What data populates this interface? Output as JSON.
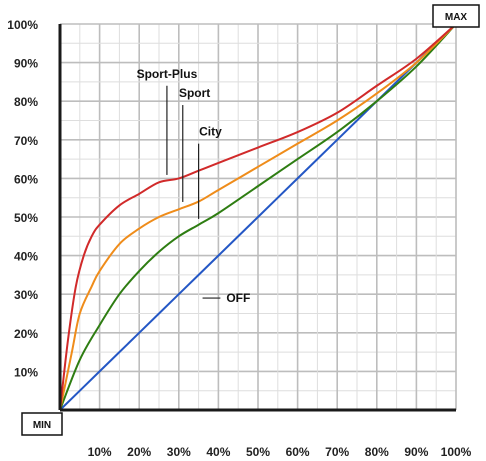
{
  "chart_data": {
    "type": "line",
    "title": "",
    "xlabel": "",
    "ylabel": "",
    "xlim": [
      0,
      100
    ],
    "ylim": [
      0,
      100
    ],
    "grid": true,
    "x_ticks": [
      "10%",
      "20%",
      "30%",
      "40%",
      "50%",
      "60%",
      "70%",
      "80%",
      "90%",
      "100%"
    ],
    "y_ticks": [
      "10%",
      "20%",
      "30%",
      "40%",
      "50%",
      "60%",
      "70%",
      "80%",
      "90%",
      "100%"
    ],
    "min_label": "MIN",
    "max_label": "MAX",
    "series": [
      {
        "name": "OFF",
        "color": "#2457c5",
        "x": [
          0,
          10,
          20,
          30,
          40,
          50,
          60,
          70,
          80,
          90,
          100
        ],
        "y": [
          0,
          10,
          20,
          30,
          40,
          50,
          60,
          70,
          80,
          90,
          100
        ]
      },
      {
        "name": "City",
        "color": "#2e7d12",
        "x": [
          0,
          5,
          10,
          15,
          20,
          25,
          30,
          35,
          40,
          50,
          60,
          70,
          80,
          90,
          100
        ],
        "y": [
          0,
          13,
          22,
          30,
          36,
          41,
          45,
          48,
          51,
          58,
          65,
          72,
          80,
          89,
          100
        ]
      },
      {
        "name": "Sport",
        "color": "#ef8c1a",
        "x": [
          0,
          3,
          5,
          8,
          10,
          15,
          20,
          25,
          30,
          35,
          40,
          50,
          60,
          70,
          80,
          90,
          100
        ],
        "y": [
          0,
          15,
          25,
          32,
          36,
          43,
          47,
          50,
          52,
          54,
          57,
          63,
          69,
          75,
          82,
          90,
          100
        ]
      },
      {
        "name": "Sport-Plus",
        "color": "#d12a2a",
        "x": [
          0,
          2,
          4,
          6,
          8,
          10,
          15,
          20,
          25,
          30,
          35,
          40,
          50,
          60,
          70,
          80,
          90,
          100
        ],
        "y": [
          0,
          18,
          32,
          40,
          45,
          48,
          53,
          56,
          59,
          60,
          62,
          64,
          68,
          72,
          77,
          84,
          91,
          100
        ]
      }
    ],
    "annotations": [
      {
        "text": "Sport-Plus",
        "series": "Sport-Plus"
      },
      {
        "text": "Sport",
        "series": "Sport"
      },
      {
        "text": "City",
        "series": "City"
      },
      {
        "text": "OFF",
        "series": "OFF"
      }
    ]
  }
}
